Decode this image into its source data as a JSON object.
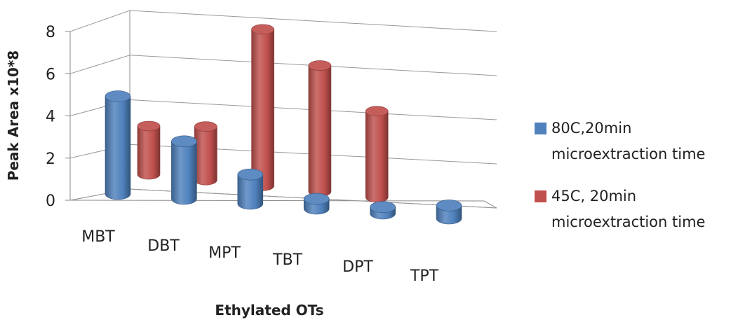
{
  "chart_data": {
    "type": "bar",
    "style": "3d-cylinder",
    "categories": [
      "MBT",
      "DBT",
      "MPT",
      "TBT",
      "DPT",
      "TPT"
    ],
    "series": [
      {
        "name": "80C,20min microextraction time",
        "legend_lines": [
          "80C,20min",
          "microextraction time"
        ],
        "color": "#4f81bd",
        "values": [
          4.5,
          2.65,
          1.35,
          0.45,
          0.3,
          0.6
        ]
      },
      {
        "name": "45C, 20min microextraction time",
        "legend_lines": [
          "45C, 20min",
          "microextraction time"
        ],
        "color": "#c0504d",
        "values": [
          2.3,
          2.55,
          7.45,
          6.0,
          4.1,
          0
        ]
      }
    ],
    "yticks": [
      "0",
      "2",
      "4",
      "6",
      "8"
    ],
    "ylim": [
      0,
      8
    ],
    "xlabel": "Ethylated OTs",
    "ylabel": "Peak Area x10*8",
    "grid": true,
    "legend_position": "right"
  }
}
